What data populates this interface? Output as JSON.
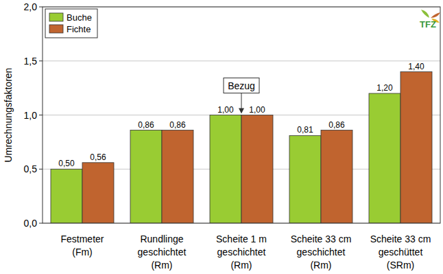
{
  "chart_data": {
    "type": "bar",
    "y_label": "Umrechnungsfaktoren",
    "categories": [
      "Festmeter\n(Fm)",
      "Rundlinge\ngeschichtet\n(Rm)",
      "Scheite 1 m\ngeschichtet\n(Rm)",
      "Scheite 33 cm\ngeschichtet\n(Rm)",
      "Scheite 33 cm\ngeschüttet\n(SRm)"
    ],
    "series": [
      {
        "name": "Buche",
        "color": "#99cc33",
        "values": [
          0.5,
          0.86,
          1.0,
          0.81,
          1.2
        ],
        "value_labels": [
          "0,50",
          "0,86",
          "1,00",
          "0,81",
          "1,20"
        ]
      },
      {
        "name": "Fichte",
        "color": "#c0642f",
        "values": [
          0.56,
          0.86,
          1.0,
          0.86,
          1.4
        ],
        "value_labels": [
          "0,56",
          "0,86",
          "1,00",
          "0,86",
          "1,40"
        ]
      }
    ],
    "ylim": [
      0,
      2
    ],
    "yticks": [
      {
        "value": 0,
        "label": "0,0"
      },
      {
        "value": 0.5,
        "label": "0,5"
      },
      {
        "value": 1,
        "label": "1,0"
      },
      {
        "value": 1.5,
        "label": "1,5"
      },
      {
        "value": 2,
        "label": "2,0"
      }
    ],
    "grid": true,
    "legend": "upper left",
    "data_labels": true,
    "annotations": [
      {
        "text": "Bezug",
        "x": "Scheite 1 m\ngeschichtet\n(Rm)",
        "y": 1.0
      }
    ],
    "logo": "TFZ"
  }
}
